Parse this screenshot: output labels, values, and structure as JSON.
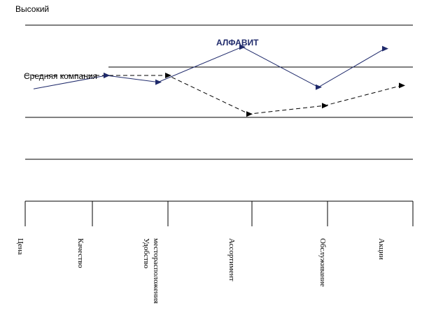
{
  "chart_data": {
    "type": "line",
    "title": "",
    "top_label": "Высокий",
    "categories": [
      "Цена",
      "Качество",
      "Удобство месторасположения",
      "Ассортимент",
      "Обслуживание",
      "Акции"
    ],
    "series": [
      {
        "name": "АЛФАВИТ",
        "style": "solid",
        "color": "#1f2a6b",
        "values": [
          3.35,
          3.75,
          3.55,
          4.6,
          3.4,
          4.55
        ]
      },
      {
        "name": "Средняя компания",
        "style": "dashed",
        "color": "#000000",
        "values": [
          3.75,
          3.75,
          3.75,
          2.6,
          2.85,
          3.45
        ]
      }
    ],
    "ylim": [
      0,
      5
    ],
    "grid": "horizontal",
    "legend": "inline labels"
  }
}
